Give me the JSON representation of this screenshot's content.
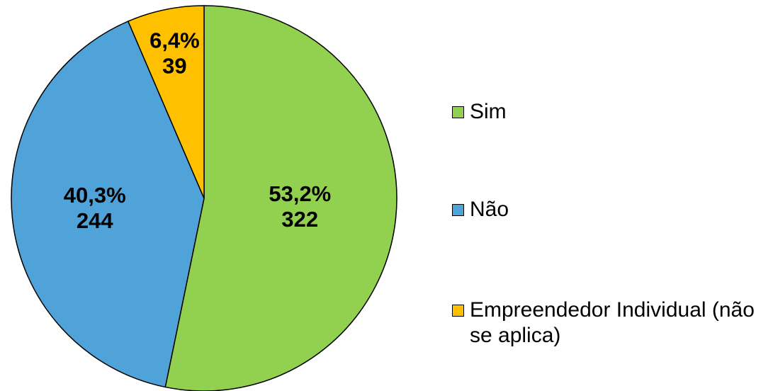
{
  "chart_data": {
    "type": "pie",
    "categories": [
      "Sim",
      "Não",
      "Empreendedor Individual (não se aplica)"
    ],
    "values": [
      322,
      244,
      39
    ],
    "percentages": [
      53.2,
      40.3,
      6.4
    ],
    "percentage_labels": [
      "53,2%",
      "40,3%",
      "6,4%"
    ],
    "colors": [
      "#92d050",
      "#4fa3d8",
      "#ffc000"
    ],
    "legend": "right"
  }
}
